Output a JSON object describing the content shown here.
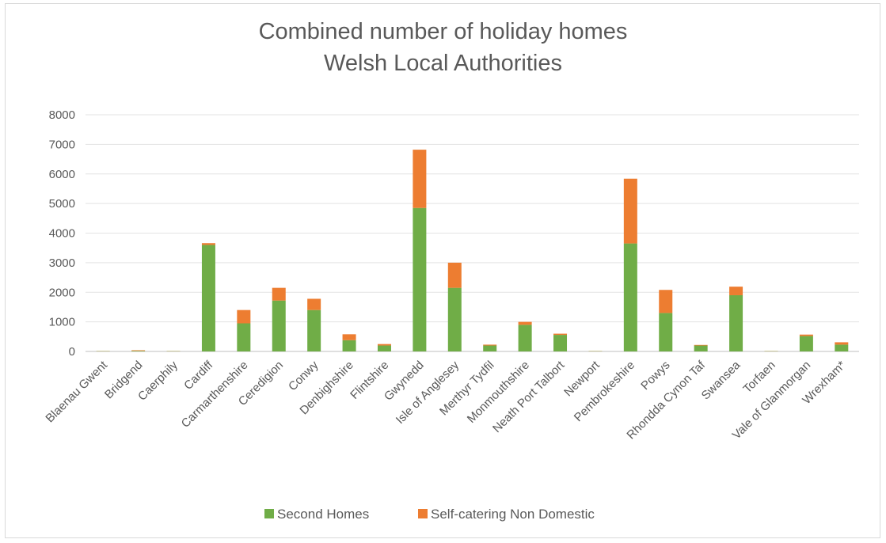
{
  "chart_data": {
    "type": "bar",
    "stacked": true,
    "title": "Combined number of holiday homes",
    "subtitle": "Welsh Local Authorities",
    "xlabel": "",
    "ylabel": "",
    "ylim": [
      0,
      8000
    ],
    "yticks": [
      0,
      1000,
      2000,
      3000,
      4000,
      5000,
      6000,
      7000,
      8000
    ],
    "grid": true,
    "legend_position": "bottom",
    "categories": [
      "Blaenau Gwent",
      "Bridgend",
      "Caerphily",
      "Cardiff",
      "Carmarthenshire",
      "Ceredigion",
      "Conwy",
      "Denbighshire",
      "Flintshire",
      "Gwynedd",
      "Isle of Anglesey",
      "Merthyr Tydfil",
      "Monmouthshire",
      "Neath Port Talbort",
      "Newport",
      "Pembrokeshire",
      "Powys",
      "Rhondda Cynon Taf",
      "Swansea",
      "Torfaen",
      "Vale of Glanmorgan",
      "Wrexham*"
    ],
    "series": [
      {
        "name": "Second Homes",
        "color": "#70ad47",
        "values": [
          10,
          20,
          10,
          3600,
          950,
          1720,
          1400,
          380,
          200,
          4850,
          2150,
          200,
          900,
          560,
          10,
          3650,
          1300,
          200,
          1900,
          10,
          520,
          230
        ]
      },
      {
        "name": "Self-catering Non Domestic",
        "color": "#ed7d31",
        "values": [
          5,
          20,
          5,
          60,
          450,
          430,
          380,
          200,
          50,
          1970,
          850,
          30,
          100,
          40,
          5,
          2190,
          780,
          20,
          290,
          5,
          50,
          80
        ]
      }
    ]
  }
}
